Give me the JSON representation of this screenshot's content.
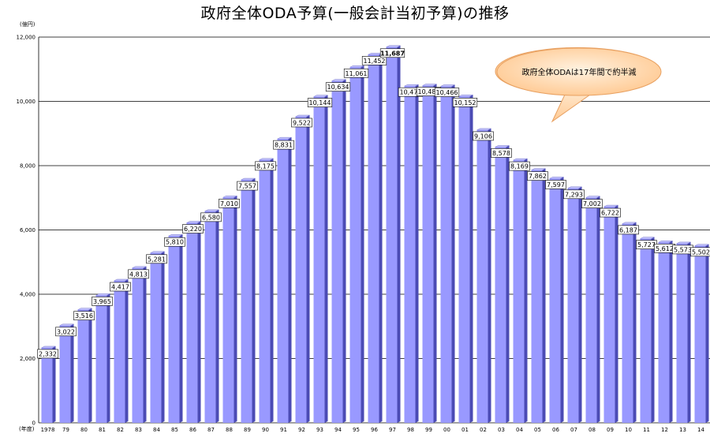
{
  "chart_data": {
    "type": "bar",
    "title": "政府全体ODA予算(一般会計当初予算)の推移",
    "ylabel": "(億円)",
    "xlabel": "(年度)",
    "ylim": [
      0,
      12000
    ],
    "yticks": [
      "0",
      "2,000",
      "4,000",
      "6,000",
      "8,000",
      "10,000",
      "12,000"
    ],
    "grid": true,
    "categories": [
      "1978",
      "79",
      "80",
      "81",
      "82",
      "83",
      "84",
      "85",
      "86",
      "87",
      "88",
      "89",
      "90",
      "91",
      "92",
      "93",
      "94",
      "95",
      "96",
      "97",
      "98",
      "99",
      "00",
      "01",
      "02",
      "03",
      "04",
      "05",
      "06",
      "07",
      "08",
      "09",
      "10",
      "11",
      "12",
      "13",
      "14"
    ],
    "values": [
      2332,
      3022,
      3516,
      3965,
      4417,
      4813,
      5281,
      5810,
      6220,
      6580,
      7010,
      7557,
      8175,
      8831,
      9522,
      10144,
      10634,
      11061,
      11452,
      11687,
      10473,
      10489,
      10466,
      10152,
      9106,
      8578,
      8169,
      7862,
      7597,
      7293,
      7002,
      6722,
      6187,
      5727,
      5612,
      5573,
      5502
    ],
    "value_labels": [
      "2,332",
      "3,022",
      "3,516",
      "3,965",
      "4,417",
      "4,813",
      "5,281",
      "5,810",
      "6,220",
      "6,580",
      "7,010",
      "7,557",
      "8,175",
      "8,831",
      "9,522",
      "10,144",
      "10,634",
      "11,061",
      "11,452",
      "11,687",
      "10,473",
      "10,489",
      "10,466",
      "10,152",
      "9,106",
      "8,578",
      "8,169",
      "7,862",
      "7,597",
      "7,293",
      "7,002",
      "6,722",
      "6,187",
      "5,727",
      "5,612",
      "5,573",
      "5,502"
    ],
    "peak_index": 19,
    "annotation": "政府全体ODAは17年間で約半減",
    "colors": {
      "bar_front": "#9999ff",
      "bar_side": "#4b4bb4",
      "bar_top": "#c8c8ff",
      "gridline": "#000000",
      "callout_fill": "#ffcc99",
      "callout_stroke": "#e8a060"
    }
  }
}
